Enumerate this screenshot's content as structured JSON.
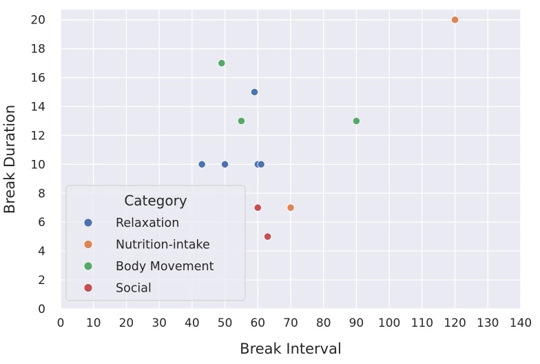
{
  "chart_data": {
    "type": "scatter",
    "xlabel": "Break Interval",
    "ylabel": "Break Duration",
    "xlim": [
      0,
      140
    ],
    "ylim": [
      0,
      20.7
    ],
    "xticks": [
      0,
      10,
      20,
      30,
      40,
      50,
      60,
      70,
      80,
      90,
      100,
      110,
      120,
      130,
      140
    ],
    "yticks": [
      0,
      2,
      4,
      6,
      8,
      10,
      12,
      14,
      16,
      18,
      20
    ],
    "grid": true,
    "legend": {
      "title": "Category",
      "placement": "lower-left"
    },
    "series": [
      {
        "name": "Relaxation",
        "color": "#4c72b0",
        "points": [
          [
            43,
            10
          ],
          [
            50,
            10
          ],
          [
            59,
            15
          ],
          [
            60,
            10
          ],
          [
            61,
            10
          ]
        ]
      },
      {
        "name": "Nutrition-intake",
        "color": "#dd8452",
        "points": [
          [
            70,
            7
          ],
          [
            120,
            20
          ]
        ]
      },
      {
        "name": "Body Movement",
        "color": "#55a868",
        "points": [
          [
            49,
            17
          ],
          [
            55,
            13
          ],
          [
            90,
            13
          ]
        ]
      },
      {
        "name": "Social",
        "color": "#c44e52",
        "points": [
          [
            60,
            7
          ],
          [
            63,
            5
          ]
        ]
      }
    ]
  }
}
